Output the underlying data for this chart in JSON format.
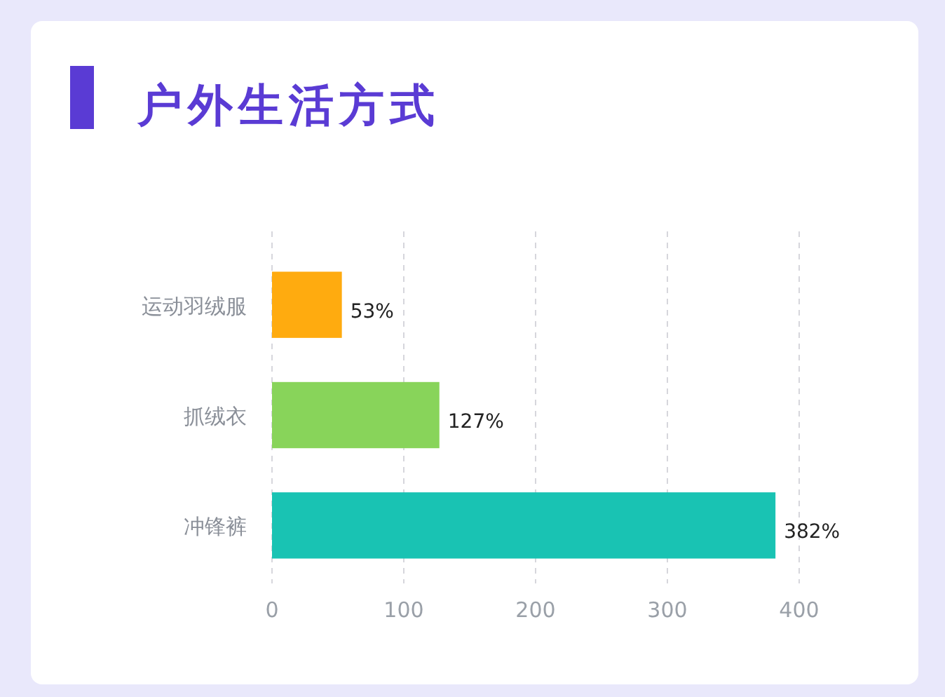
{
  "chart_data": {
    "type": "bar",
    "orientation": "horizontal",
    "title": "户外生活方式",
    "categories": [
      "运动羽绒服",
      "抓绒衣",
      "冲锋裤"
    ],
    "values": [
      53,
      127,
      382
    ],
    "colors": [
      "#ffab0f",
      "#88d45a",
      "#19c3b3"
    ],
    "value_labels": [
      "53%",
      "127%",
      "382%"
    ],
    "xlim": [
      0,
      400
    ],
    "xticks": [
      0,
      100,
      200,
      300,
      400
    ],
    "grid": "x"
  }
}
